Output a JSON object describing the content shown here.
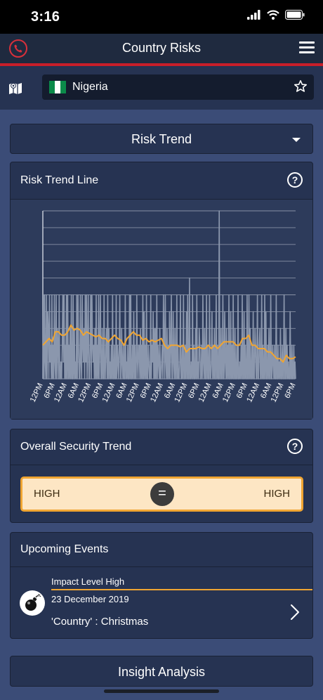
{
  "status": {
    "time": "3:16"
  },
  "header": {
    "title": "Country Risks"
  },
  "country": {
    "name": "Nigeria",
    "flag_colors": [
      "#0b8a4a",
      "#ffffff",
      "#0b8a4a"
    ]
  },
  "risk_view": {
    "selected": "Risk Trend"
  },
  "trend_card": {
    "title": "Risk Trend Line",
    "help_glyph": "?",
    "chart_data": {
      "type": "line",
      "x_ticks": [
        "12PM",
        "6PM",
        "12AM",
        "6AM",
        "12PM",
        "6PM",
        "12AM",
        "6AM",
        "12PM",
        "6PM",
        "12AM",
        "6AM",
        "12PM",
        "6PM",
        "12AM",
        "6AM",
        "12PM",
        "6PM",
        "12AM",
        "6AM",
        "12PM",
        "6PM"
      ],
      "ylim": [
        0,
        10
      ],
      "grid": true,
      "series": [
        {
          "color": "#8b97ad",
          "values": [
            0,
            5,
            0,
            5,
            1,
            0,
            5,
            0,
            4,
            3,
            0,
            5,
            1,
            2,
            0,
            5,
            0,
            2,
            0,
            5,
            1,
            0,
            5,
            0,
            3,
            2,
            0,
            5,
            0,
            0,
            1,
            0,
            2,
            5,
            1,
            5,
            0,
            2,
            0,
            5,
            0,
            5,
            0,
            2,
            0,
            3,
            0,
            5,
            0,
            0,
            5,
            0,
            3,
            0,
            1,
            0,
            5,
            0,
            5,
            2,
            0,
            0,
            5,
            1,
            0,
            5,
            2,
            1,
            3,
            0,
            5,
            1,
            5,
            0,
            2,
            5,
            0,
            0,
            2,
            5,
            0,
            5,
            2,
            1,
            2,
            0,
            3,
            0,
            5,
            0,
            2,
            0,
            5,
            0,
            2,
            5,
            0,
            0,
            3,
            0,
            0,
            5,
            0,
            0,
            2,
            3,
            0,
            5,
            0,
            3,
            0,
            1,
            0,
            2,
            0,
            5,
            0,
            0,
            2,
            0,
            0,
            5,
            0,
            2,
            1,
            0,
            2,
            5,
            0,
            0,
            3,
            1,
            0,
            2,
            0,
            0,
            5,
            0,
            1,
            0,
            2,
            0,
            0,
            5,
            0,
            5,
            0,
            0,
            2,
            0,
            4,
            0,
            2,
            0,
            0,
            5,
            1,
            0,
            2,
            2,
            0,
            3,
            0,
            2,
            0,
            5,
            0,
            4,
            0,
            2,
            0,
            5,
            0,
            0,
            2,
            1,
            0,
            0,
            5,
            0,
            2,
            1,
            4,
            0,
            3,
            0,
            3,
            0,
            5,
            0,
            2,
            1,
            0,
            3,
            0,
            0,
            1,
            2,
            0,
            5,
            2,
            0,
            5,
            1,
            0,
            3,
            0,
            2,
            0,
            4,
            0,
            2,
            5,
            0,
            0,
            4,
            1,
            0,
            3,
            0,
            0,
            5,
            0,
            2,
            0,
            0,
            1,
            5,
            0,
            0,
            2,
            0,
            5,
            0,
            0,
            2,
            0,
            4,
            0,
            5,
            0,
            0,
            6,
            0,
            0,
            1,
            0,
            5,
            0,
            2,
            0,
            0,
            3,
            0,
            5,
            0,
            1,
            0,
            3,
            2,
            0,
            0,
            2,
            0,
            5,
            1,
            0,
            3,
            0,
            0,
            5,
            0,
            2,
            0,
            0,
            5,
            0,
            0,
            1,
            4,
            0,
            2,
            0,
            3,
            0,
            0,
            5,
            0,
            2,
            0,
            0,
            10,
            0,
            0,
            3,
            0,
            0,
            5,
            0,
            0,
            4,
            1,
            0,
            3,
            0,
            2,
            0,
            5,
            0,
            0,
            4,
            0,
            2,
            0,
            5,
            0,
            0,
            3,
            0,
            0,
            2,
            0,
            5,
            0,
            0,
            1,
            0,
            2,
            0,
            5,
            0,
            0,
            4,
            0,
            2,
            0,
            0,
            5,
            0,
            0,
            5,
            0,
            3,
            0,
            0,
            2,
            0,
            4,
            0,
            0,
            3,
            2,
            0,
            0,
            5,
            0,
            0,
            2,
            3,
            0,
            0,
            5,
            0,
            2,
            0,
            0,
            5,
            0,
            4,
            0,
            0,
            2,
            0,
            3,
            0,
            0,
            5,
            0,
            0,
            2,
            1,
            0,
            2,
            0,
            0,
            5,
            0,
            0,
            2,
            0,
            1,
            0,
            3,
            0,
            0,
            2,
            0,
            0,
            5,
            0,
            0,
            3,
            0,
            2,
            0,
            1,
            0,
            0,
            4,
            0,
            0,
            2,
            0,
            0,
            2,
            0,
            1,
            0
          ]
        },
        {
          "color": "#f0a532",
          "values": [
            2.0,
            2.2,
            2.4,
            2.2,
            2.8,
            2.8,
            2.6,
            2.6,
            2.8,
            3.2,
            2.9,
            3.0,
            2.9,
            2.6,
            2.8,
            2.7,
            2.6,
            2.5,
            2.6,
            2.4,
            2.4,
            2.2,
            2.4,
            2.6,
            2.4,
            2.3,
            2.0,
            2.4,
            2.6,
            2.8,
            2.6,
            2.6,
            2.3,
            2.4,
            2.2,
            2.3,
            2.2,
            2.3,
            2.4,
            2.0,
            1.8,
            2.0,
            2.0,
            2.0,
            1.9,
            2.0,
            1.6,
            1.8,
            1.8,
            1.8,
            1.9,
            1.8,
            1.8,
            2.0,
            1.8,
            2.0,
            1.8,
            2.0,
            2.2,
            2.2,
            2.2,
            2.2,
            2.0,
            2.0,
            2.4,
            2.4,
            2.6,
            2.0,
            2.0,
            1.8,
            1.8,
            1.8,
            1.6,
            1.6,
            1.4,
            1.2,
            1.2,
            1.0,
            1.4,
            1.2,
            1.2,
            1.3
          ]
        }
      ]
    }
  },
  "security": {
    "title": "Overall Security Trend",
    "help_glyph": "?",
    "left": "HIGH",
    "right": "HIGH",
    "symbol": "="
  },
  "events": {
    "title": "Upcoming Events",
    "items": [
      {
        "impact": "Impact Level High",
        "date": "23 December 2019",
        "name": "'Country' : Christmas",
        "icon": "bomb-icon"
      }
    ]
  },
  "insight": {
    "label": "Insight Analysis"
  }
}
